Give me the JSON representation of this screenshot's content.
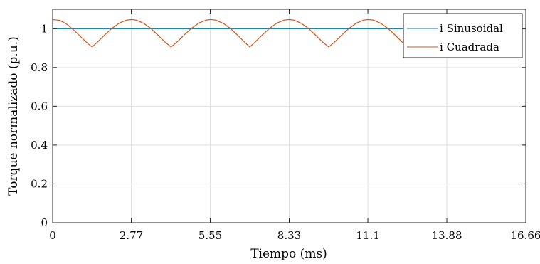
{
  "chart_data": {
    "type": "line",
    "xlabel": "Tiempo (ms)",
    "ylabel": "Torque normalizado (p.u.)",
    "xlim": [
      0,
      16.66
    ],
    "ylim": [
      0,
      1.1
    ],
    "x_ticks": [
      0,
      2.77,
      5.55,
      8.33,
      11.1,
      13.88,
      16.66
    ],
    "x_tick_labels": [
      "0",
      "2.77",
      "5.55",
      "8.33",
      "11.1",
      "13.88",
      "16.66"
    ],
    "y_ticks": [
      0,
      0.2,
      0.4,
      0.6,
      0.8,
      1
    ],
    "y_tick_labels": [
      "0",
      "0.2",
      "0.4",
      "0.6",
      "0.8",
      "1"
    ],
    "grid": true,
    "legend_position": "top-right",
    "series": [
      {
        "name": "i Sinusoidal",
        "color": "#0072bd",
        "x": [
          0,
          16.66
        ],
        "y": [
          1.0,
          1.0
        ]
      },
      {
        "name": "i Cuadrada",
        "color": "#d95319",
        "x": [
          0,
          0.25,
          0.5,
          0.75,
          1.0,
          1.25,
          1.39,
          1.6,
          1.85,
          2.1,
          2.35,
          2.6,
          2.78,
          2.95,
          3.2,
          3.45,
          3.7,
          3.95,
          4.17,
          4.4,
          4.65,
          4.9,
          5.15,
          5.4,
          5.56,
          5.75,
          6.0,
          6.25,
          6.5,
          6.75,
          6.94,
          7.15,
          7.4,
          7.65,
          7.9,
          8.15,
          8.33,
          8.5,
          8.75,
          9.0,
          9.25,
          9.5,
          9.72,
          9.95,
          10.2,
          10.45,
          10.7,
          10.95,
          11.11,
          11.3,
          11.55,
          11.8,
          12.05,
          12.3,
          12.5,
          12.75,
          13.0,
          13.25,
          13.5,
          13.75,
          13.89
        ],
        "y": [
          1.047,
          1.043,
          1.023,
          0.992,
          0.957,
          0.922,
          0.906,
          0.934,
          0.97,
          1.003,
          1.029,
          1.044,
          1.047,
          1.044,
          1.028,
          1.002,
          0.968,
          0.932,
          0.906,
          0.934,
          0.97,
          1.003,
          1.029,
          1.044,
          1.047,
          1.044,
          1.028,
          1.002,
          0.968,
          0.932,
          0.906,
          0.934,
          0.97,
          1.003,
          1.029,
          1.044,
          1.047,
          1.044,
          1.028,
          1.002,
          0.968,
          0.932,
          0.906,
          0.934,
          0.97,
          1.003,
          1.029,
          1.044,
          1.047,
          1.044,
          1.028,
          1.002,
          0.968,
          0.932,
          0.906,
          0.934,
          0.97,
          1.003,
          1.029,
          1.044,
          1.047
        ]
      }
    ]
  }
}
